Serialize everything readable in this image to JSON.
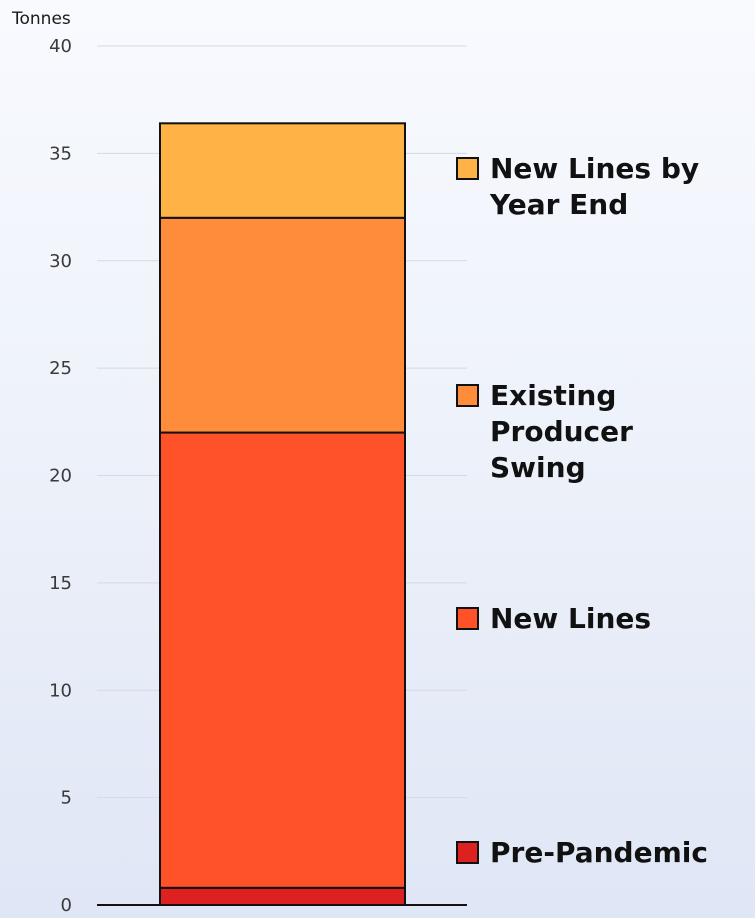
{
  "chart_data": {
    "type": "bar",
    "stacked": true,
    "unit_label": "Tonnes",
    "ylim": [
      0,
      40
    ],
    "yticks": [
      0,
      5,
      10,
      15,
      20,
      25,
      30,
      35,
      40
    ],
    "grid": true,
    "legend_position": "right",
    "series": [
      {
        "name": "Pre-Pandemic",
        "value": 0.8,
        "color": "#dd2020"
      },
      {
        "name": "New Lines",
        "value": 21.2,
        "color": "#ff5229"
      },
      {
        "name": "Existing Producer Swing",
        "value": 10.0,
        "color": "#ff8c3a"
      },
      {
        "name": "New Lines by Year End",
        "value": 4.4,
        "color": "#ffb347"
      }
    ],
    "legend_lines": {
      "Pre-Pandemic": [
        "Pre-Pandemic"
      ],
      "New Lines": [
        "New Lines"
      ],
      "Existing Producer Swing": [
        "Existing",
        "Producer",
        "Swing"
      ],
      "New Lines by Year End": [
        "New Lines by",
        "Year End"
      ]
    }
  }
}
